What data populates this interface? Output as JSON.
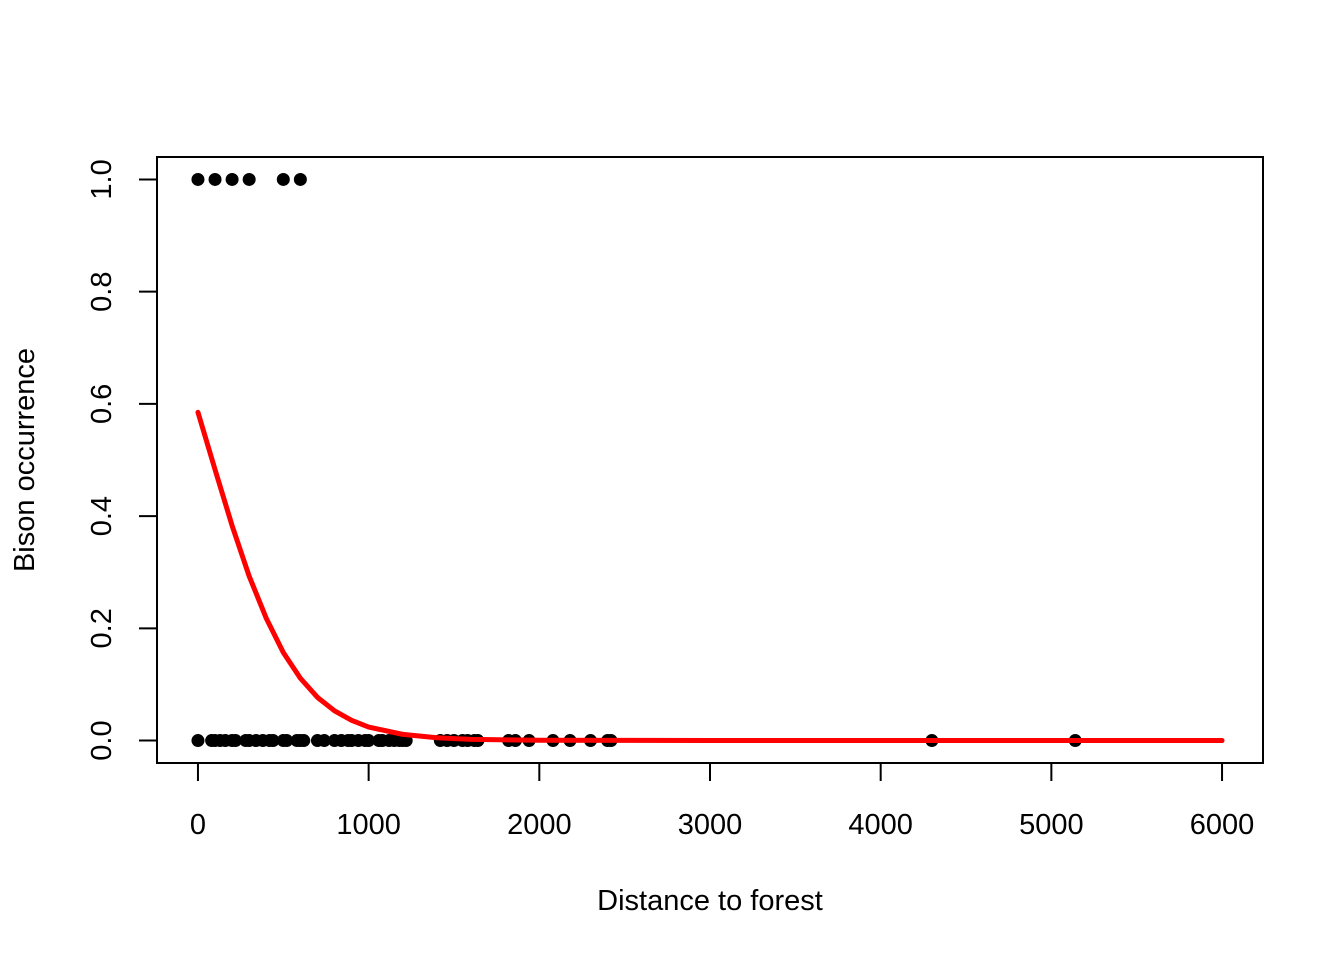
{
  "chart_data": {
    "type": "scatter",
    "title": "",
    "xlabel": "Distance to forest",
    "ylabel": "Bison occurrence",
    "xlim": [
      -240,
      6240
    ],
    "ylim": [
      -0.04,
      1.04
    ],
    "x_ticks": [
      0,
      1000,
      2000,
      3000,
      4000,
      5000,
      6000
    ],
    "x_tick_labels": [
      "0",
      "1000",
      "2000",
      "3000",
      "4000",
      "5000",
      "6000"
    ],
    "y_ticks": [
      0.0,
      0.2,
      0.4,
      0.6,
      0.8,
      1.0
    ],
    "y_tick_labels": [
      "0.0",
      "0.2",
      "0.4",
      "0.6",
      "0.8",
      "1.0"
    ],
    "grid": false,
    "legend": "none",
    "points": {
      "color": "#000000",
      "x": [
        0,
        100,
        200,
        300,
        500,
        600,
        0,
        80,
        100,
        130,
        160,
        200,
        220,
        280,
        300,
        340,
        380,
        420,
        440,
        500,
        520,
        580,
        600,
        620,
        700,
        740,
        800,
        840,
        880,
        900,
        940,
        980,
        1000,
        1060,
        1080,
        1120,
        1150,
        1180,
        1200,
        1220,
        1420,
        1460,
        1500,
        1550,
        1580,
        1620,
        1640,
        1820,
        1860,
        1940,
        2080,
        2180,
        2300,
        2400,
        2420,
        4300,
        5140
      ],
      "y": [
        1,
        1,
        1,
        1,
        1,
        1,
        0,
        0,
        0,
        0,
        0,
        0,
        0,
        0,
        0,
        0,
        0,
        0,
        0,
        0,
        0,
        0,
        0,
        0,
        0,
        0,
        0,
        0,
        0,
        0,
        0,
        0,
        0,
        0,
        0,
        0,
        0,
        0,
        0,
        0,
        0,
        0,
        0,
        0,
        0,
        0,
        0,
        0,
        0,
        0,
        0,
        0,
        0,
        0,
        0,
        0,
        0
      ]
    },
    "fitted_curve": {
      "color": "#ff0000",
      "x": [
        0,
        100,
        200,
        300,
        400,
        500,
        600,
        700,
        800,
        900,
        1000,
        1200,
        1400,
        1600,
        2000,
        3000,
        4000,
        5000,
        6000
      ],
      "y": [
        0.585,
        0.483,
        0.383,
        0.293,
        0.218,
        0.157,
        0.111,
        0.077,
        0.053,
        0.036,
        0.024,
        0.011,
        0.005,
        0.002,
        0.0005,
        0.0,
        0.0,
        0.0,
        0.0
      ]
    }
  }
}
